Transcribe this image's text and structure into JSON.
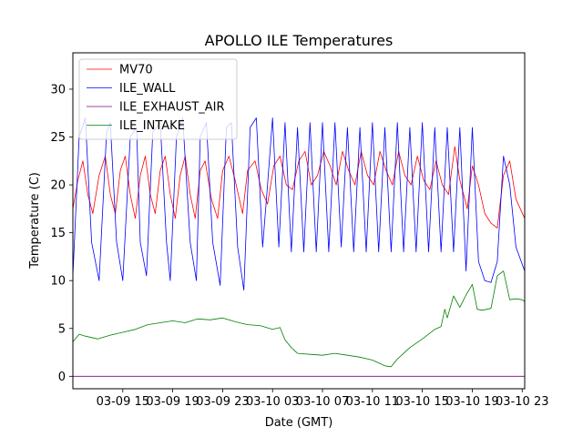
{
  "chart_data": {
    "type": "line",
    "title": "APOLLO ILE Temperatures",
    "xlabel": "Date (GMT)",
    "ylabel": "Temperature (C)",
    "x_unit": "hours since 03-09 11:00 GMT",
    "xlim": [
      0,
      36.2
    ],
    "ylim": [
      -1.3,
      33.8
    ],
    "grid": false,
    "legend_position": "upper-left",
    "x_ticks": [
      {
        "x": 4,
        "label": "03-09 15"
      },
      {
        "x": 8,
        "label": "03-09 19"
      },
      {
        "x": 12,
        "label": "03-09 23"
      },
      {
        "x": 16,
        "label": "03-10 03"
      },
      {
        "x": 20,
        "label": "03-10 07"
      },
      {
        "x": 24,
        "label": "03-10 11"
      },
      {
        "x": 28,
        "label": "03-10 15"
      },
      {
        "x": 32,
        "label": "03-10 19"
      },
      {
        "x": 36,
        "label": "03-10 23"
      }
    ],
    "y_ticks": [
      {
        "y": 0,
        "label": "0"
      },
      {
        "y": 5,
        "label": "5"
      },
      {
        "y": 10,
        "label": "10"
      },
      {
        "y": 15,
        "label": "15"
      },
      {
        "y": 20,
        "label": "20"
      },
      {
        "y": 25,
        "label": "25"
      },
      {
        "y": 30,
        "label": "30"
      }
    ],
    "series": [
      {
        "name": "MV70",
        "color": "#ff0000",
        "x": [
          0,
          0.4,
          0.8,
          1.2,
          1.6,
          2.1,
          2.6,
          3.0,
          3.4,
          3.8,
          4.2,
          4.6,
          5.0,
          5.4,
          5.8,
          6.2,
          6.6,
          7.0,
          7.4,
          7.8,
          8.2,
          8.6,
          9.0,
          9.4,
          9.8,
          10.2,
          10.6,
          11.1,
          11.6,
          12.0,
          12.5,
          13.0,
          13.6,
          14.0,
          14.6,
          15.1,
          15.6,
          16.1,
          16.6,
          17.1,
          17.6,
          18.1,
          18.6,
          19.1,
          19.6,
          20.1,
          20.6,
          21.1,
          21.6,
          22.1,
          22.6,
          23.1,
          23.6,
          24.1,
          24.6,
          25.1,
          25.6,
          26.1,
          26.6,
          27.1,
          27.6,
          28.1,
          28.6,
          29.1,
          29.6,
          30.1,
          30.6,
          31.0,
          31.6,
          32.0,
          32.5,
          33.0,
          33.5,
          34.0,
          34.5,
          35.0,
          35.5,
          36.2
        ],
        "y": [
          17.5,
          20.5,
          22.5,
          19.0,
          17.0,
          21.0,
          23.0,
          19.0,
          17.0,
          21.5,
          23.0,
          19.0,
          16.5,
          21.0,
          23.0,
          19.0,
          17.0,
          21.5,
          23.0,
          19.0,
          16.5,
          21.0,
          23.0,
          19.0,
          16.5,
          21.5,
          22.5,
          18.5,
          16.5,
          21.5,
          23.0,
          20.5,
          17.0,
          21.5,
          22.5,
          19.5,
          18.0,
          22.0,
          23.0,
          20.0,
          19.5,
          22.5,
          23.5,
          20.0,
          21.0,
          23.5,
          22.0,
          20.0,
          23.5,
          21.5,
          20.0,
          23.5,
          21.0,
          20.0,
          23.5,
          21.5,
          20.0,
          23.5,
          21.0,
          20.0,
          23.0,
          20.5,
          19.5,
          22.5,
          20.0,
          19.0,
          24.0,
          20.5,
          17.5,
          22.0,
          20.0,
          17.0,
          16.0,
          15.5,
          21.0,
          22.5,
          18.5,
          16.5
        ]
      },
      {
        "name": "ILE_WALL",
        "color": "#0000ff",
        "x": [
          0,
          0.5,
          1.0,
          1.5,
          2.1,
          2.7,
          3.0,
          3.5,
          4.0,
          4.6,
          5.1,
          5.4,
          5.9,
          6.4,
          7.0,
          7.5,
          7.8,
          8.3,
          8.8,
          9.4,
          9.9,
          10.2,
          10.7,
          11.2,
          11.8,
          12.3,
          12.7,
          13.2,
          13.7,
          14.2,
          14.7,
          15.2,
          15.6,
          16.0,
          16.5,
          17.0,
          17.5,
          18.0,
          18.5,
          19.0,
          19.5,
          20.0,
          20.5,
          21.0,
          21.5,
          22.0,
          22.5,
          23.0,
          23.5,
          24.0,
          24.5,
          25.0,
          25.5,
          26.0,
          26.5,
          27.0,
          27.5,
          28.0,
          28.5,
          29.0,
          29.5,
          30.0,
          30.5,
          31.0,
          31.5,
          32.0,
          32.5,
          33.0,
          33.5,
          34.0,
          34.5,
          35.0,
          35.5,
          36.2
        ],
        "y": [
          10.5,
          25.0,
          27.0,
          14.0,
          10.0,
          25.5,
          26.5,
          14.0,
          10.0,
          25.0,
          26.0,
          14.0,
          10.5,
          25.5,
          26.5,
          14.0,
          10.0,
          25.0,
          27.0,
          14.0,
          10.0,
          25.0,
          26.5,
          14.0,
          9.5,
          26.0,
          26.5,
          13.5,
          9.0,
          26.0,
          27.0,
          13.5,
          20.0,
          27.0,
          13.5,
          26.5,
          13.0,
          26.0,
          13.0,
          26.5,
          13.0,
          26.5,
          13.0,
          26.5,
          13.5,
          26.0,
          13.0,
          26.0,
          13.0,
          26.5,
          13.0,
          26.0,
          13.0,
          26.5,
          13.0,
          26.0,
          13.0,
          26.5,
          13.0,
          26.0,
          13.0,
          26.0,
          13.0,
          26.0,
          11.0,
          26.0,
          12.0,
          10.0,
          9.8,
          12.0,
          23.0,
          20.0,
          13.5,
          11.0
        ]
      },
      {
        "name": "ILE_EXHAUST_AIR",
        "color": "#800080",
        "x": [
          0,
          36.2
        ],
        "y": [
          0.0,
          0.0
        ]
      },
      {
        "name": "ILE_INTAKE",
        "color": "#008000",
        "x": [
          0,
          0.5,
          1.0,
          2.0,
          3.0,
          4.0,
          5.0,
          6.0,
          7.0,
          8.0,
          9.0,
          10.0,
          11.0,
          12.0,
          13.0,
          14.0,
          15.0,
          16.0,
          16.6,
          17.0,
          17.5,
          18.0,
          19.0,
          20.0,
          21.0,
          22.0,
          23.0,
          24.0,
          25.0,
          25.5,
          26.0,
          27.0,
          28.0,
          29.0,
          29.5,
          29.8,
          30.0,
          30.5,
          31.0,
          31.5,
          32.0,
          32.4,
          32.8,
          33.5,
          34.0,
          34.5,
          35.0,
          35.5,
          36.0,
          36.2
        ],
        "y": [
          3.6,
          4.4,
          4.2,
          3.9,
          4.3,
          4.6,
          4.9,
          5.4,
          5.6,
          5.8,
          5.6,
          6.0,
          5.9,
          6.1,
          5.7,
          5.4,
          5.3,
          4.9,
          5.1,
          3.8,
          3.0,
          2.4,
          2.3,
          2.2,
          2.4,
          2.2,
          2.0,
          1.7,
          1.1,
          1.0,
          1.8,
          3.0,
          3.9,
          4.9,
          5.2,
          7.0,
          6.1,
          8.4,
          7.2,
          8.5,
          9.6,
          7.0,
          6.9,
          7.1,
          10.5,
          11.0,
          8.0,
          8.1,
          8.0,
          7.8
        ]
      }
    ]
  }
}
